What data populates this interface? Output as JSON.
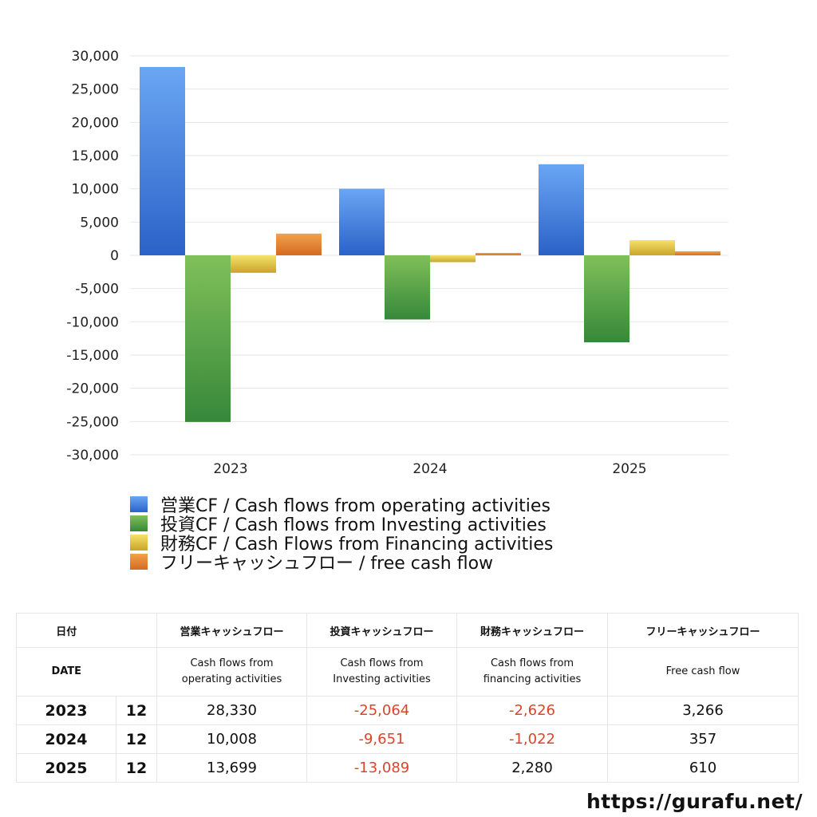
{
  "chart_data": {
    "type": "bar",
    "categories": [
      "2023",
      "2024",
      "2025"
    ],
    "ylim": [
      -30000,
      30000
    ],
    "yticks": [
      30000,
      25000,
      20000,
      15000,
      10000,
      5000,
      0,
      -5000,
      -10000,
      -15000,
      -20000,
      -25000,
      -30000
    ],
    "ytick_labels": [
      "30,000",
      "25,000",
      "20,000",
      "15,000",
      "10,000",
      "5,000",
      "0",
      "-5,000",
      "-10,000",
      "-15,000",
      "-20,000",
      "-25,000",
      "-30,000"
    ],
    "grid": true,
    "legend_position": "bottom",
    "series": [
      {
        "name": "営業CF / Cash flows from operating activities",
        "values": [
          28330,
          10008,
          13699
        ],
        "color_top": "#6aa6f3",
        "color_bottom": "#2a62c7"
      },
      {
        "name": "投資CF / Cash flows from Investing activities",
        "values": [
          -25064,
          -9651,
          -13089
        ],
        "color_top": "#80c05a",
        "color_bottom": "#36883a"
      },
      {
        "name": "財務CF / Cash Flows from Financing activities",
        "values": [
          -2626,
          -1022,
          2280
        ],
        "color_top": "#f5e26a",
        "color_bottom": "#c9a42a"
      },
      {
        "name": "フリーキャッシュフロー / free cash flow",
        "values": [
          3266,
          357,
          610
        ],
        "color_top": "#f2a24a",
        "color_bottom": "#d46a22"
      }
    ]
  },
  "table": {
    "header_jp": [
      "日付",
      "",
      "営業キャッシュフロー",
      "投資キャッシュフロー",
      "財務キャッシュフロー",
      "フリーキャッシュフロー"
    ],
    "header_en": [
      "DATE",
      "",
      "Cash flows from\noperating activities",
      "Cash flows from\nInvesting activities",
      "Cash flows from\nfinancing activities",
      "Free cash flow"
    ],
    "rows": [
      {
        "year": "2023",
        "month": "12",
        "values": [
          "28,330",
          "-25,064",
          "-2,626",
          "3,266"
        ]
      },
      {
        "year": "2024",
        "month": "12",
        "values": [
          "10,008",
          "-9,651",
          "-1,022",
          "357"
        ]
      },
      {
        "year": "2025",
        "month": "12",
        "values": [
          "13,699",
          "-13,089",
          "2,280",
          "610"
        ]
      }
    ]
  },
  "watermark": "https://gurafu.net/"
}
